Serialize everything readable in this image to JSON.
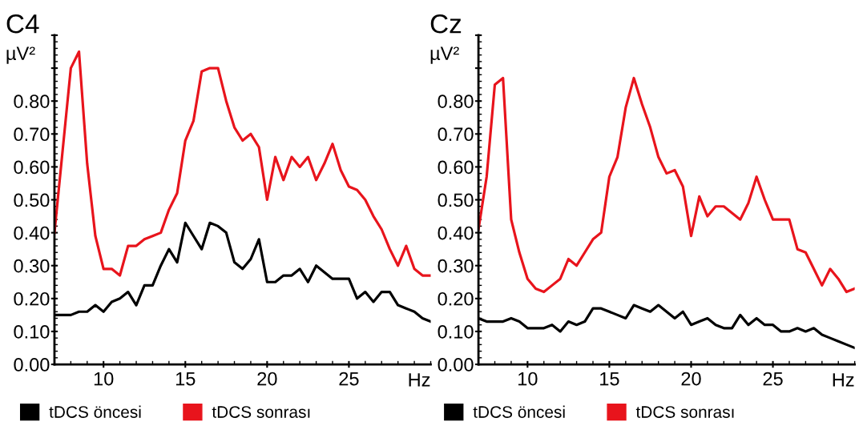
{
  "chart_data": [
    {
      "type": "line",
      "title": "C4",
      "ylabel": "µV²",
      "xlabel": "Hz",
      "legend": "bottom",
      "x": [
        7,
        7.5,
        8,
        8.5,
        9,
        9.5,
        10,
        10.5,
        11,
        11.5,
        12,
        12.5,
        13,
        13.5,
        14,
        14.5,
        15,
        15.5,
        16,
        16.5,
        17,
        17.5,
        18,
        18.5,
        19,
        19.5,
        20,
        20.5,
        21,
        21.5,
        22,
        22.5,
        23,
        23.5,
        24,
        24.5,
        25,
        25.5,
        26,
        26.5,
        27,
        27.5,
        28,
        28.5,
        29,
        29.5,
        30
      ],
      "series": [
        {
          "name": "tDCS öncesi",
          "color": "#000000",
          "values": [
            0.15,
            0.15,
            0.15,
            0.16,
            0.16,
            0.18,
            0.16,
            0.19,
            0.2,
            0.22,
            0.18,
            0.24,
            0.24,
            0.3,
            0.35,
            0.31,
            0.43,
            0.39,
            0.35,
            0.43,
            0.42,
            0.4,
            0.31,
            0.29,
            0.32,
            0.38,
            0.25,
            0.25,
            0.27,
            0.27,
            0.29,
            0.25,
            0.3,
            0.28,
            0.26,
            0.26,
            0.26,
            0.2,
            0.22,
            0.19,
            0.22,
            0.22,
            0.18,
            0.17,
            0.16,
            0.14,
            0.13
          ]
        },
        {
          "name": "tDCS sonrası",
          "color": "#e8141c",
          "values": [
            0.4,
            0.65,
            0.9,
            0.95,
            0.61,
            0.39,
            0.29,
            0.29,
            0.27,
            0.36,
            0.36,
            0.38,
            0.39,
            0.4,
            0.47,
            0.52,
            0.68,
            0.74,
            0.89,
            0.9,
            0.9,
            0.8,
            0.72,
            0.68,
            0.7,
            0.66,
            0.5,
            0.63,
            0.56,
            0.63,
            0.6,
            0.63,
            0.56,
            0.61,
            0.67,
            0.59,
            0.54,
            0.53,
            0.5,
            0.45,
            0.41,
            0.35,
            0.3,
            0.36,
            0.29,
            0.27,
            0.27
          ]
        }
      ],
      "xlim": [
        7,
        30
      ],
      "ylim": [
        0,
        1.0
      ],
      "xticks": [
        10,
        15,
        20,
        25
      ],
      "yticks": [
        {
          "value": 0,
          "label": "0.00"
        },
        {
          "value": 0.1,
          "label": "0.10"
        },
        {
          "value": 0.2,
          "label": "0.20"
        },
        {
          "value": 0.3,
          "label": "0.30"
        },
        {
          "value": 0.4,
          "label": "0.40"
        },
        {
          "value": 0.5,
          "label": "0.50"
        },
        {
          "value": 0.6,
          "label": "0.60"
        },
        {
          "value": 0.7,
          "label": "0.70"
        },
        {
          "value": 0.8,
          "label": "0.80"
        },
        {
          "value": 0.9,
          "label": null
        },
        {
          "value": 1.0,
          "label": null
        }
      ]
    },
    {
      "type": "line",
      "title": "Cz",
      "ylabel": "µV²",
      "xlabel": "Hz",
      "legend": "bottom",
      "x": [
        7,
        7.5,
        8,
        8.5,
        9,
        9.5,
        10,
        10.5,
        11,
        11.5,
        12,
        12.5,
        13,
        13.5,
        14,
        14.5,
        15,
        15.5,
        16,
        16.5,
        17,
        17.5,
        18,
        18.5,
        19,
        19.5,
        20,
        20.5,
        21,
        21.5,
        22,
        22.5,
        23,
        23.5,
        24,
        24.5,
        25,
        25.5,
        26,
        26.5,
        27,
        27.5,
        28,
        28.5,
        29,
        29.5,
        30
      ],
      "series": [
        {
          "name": "tDCS öncesi",
          "color": "#000000",
          "values": [
            0.14,
            0.13,
            0.13,
            0.13,
            0.14,
            0.13,
            0.11,
            0.11,
            0.11,
            0.12,
            0.1,
            0.13,
            0.12,
            0.13,
            0.17,
            0.17,
            0.16,
            0.15,
            0.14,
            0.18,
            0.17,
            0.16,
            0.18,
            0.16,
            0.14,
            0.16,
            0.12,
            0.13,
            0.14,
            0.12,
            0.11,
            0.11,
            0.15,
            0.12,
            0.14,
            0.12,
            0.12,
            0.1,
            0.1,
            0.11,
            0.1,
            0.11,
            0.09,
            0.08,
            0.07,
            0.06,
            0.05
          ]
        },
        {
          "name": "tDCS sonrası",
          "color": "#e8141c",
          "values": [
            0.41,
            0.57,
            0.85,
            0.87,
            0.44,
            0.34,
            0.26,
            0.23,
            0.22,
            0.24,
            0.26,
            0.32,
            0.3,
            0.34,
            0.38,
            0.4,
            0.57,
            0.63,
            0.78,
            0.87,
            0.79,
            0.72,
            0.63,
            0.58,
            0.59,
            0.54,
            0.39,
            0.51,
            0.45,
            0.48,
            0.48,
            0.46,
            0.44,
            0.49,
            0.57,
            0.5,
            0.44,
            0.44,
            0.44,
            0.35,
            0.34,
            0.29,
            0.24,
            0.29,
            0.26,
            0.22,
            0.23
          ]
        }
      ],
      "xlim": [
        7,
        30
      ],
      "ylim": [
        0,
        1.0
      ],
      "xticks": [
        10,
        15,
        20,
        25
      ],
      "yticks": [
        {
          "value": 0,
          "label": "0.00"
        },
        {
          "value": 0.1,
          "label": "0.10"
        },
        {
          "value": 0.2,
          "label": "0.20"
        },
        {
          "value": 0.3,
          "label": "0.30"
        },
        {
          "value": 0.4,
          "label": "0.40"
        },
        {
          "value": 0.5,
          "label": "0.50"
        },
        {
          "value": 0.6,
          "label": "0.60"
        },
        {
          "value": 0.7,
          "label": "0.70"
        },
        {
          "value": 0.8,
          "label": "0.80"
        },
        {
          "value": 0.9,
          "label": null
        },
        {
          "value": 1.0,
          "label": null
        }
      ]
    }
  ]
}
